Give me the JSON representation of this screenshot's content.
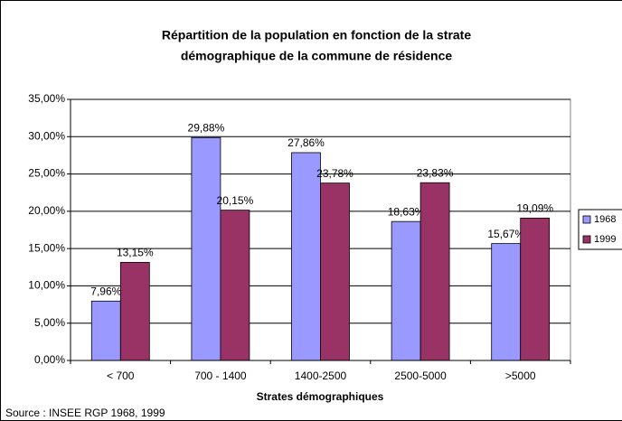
{
  "chart_data": {
    "type": "bar",
    "title": [
      "Répartition de la population en fonction de la strate",
      "démographique de la commune de résidence"
    ],
    "x_label": "Strates démographiques",
    "source": "Source : INSEE RGP 1968, 1999",
    "categories": [
      "< 700",
      "700 - 1400",
      "1400-2500",
      "2500-5000",
      ">5000"
    ],
    "series": [
      {
        "name": "1968",
        "color": "#9999ff",
        "values": [
          7.96,
          29.88,
          27.86,
          18.63,
          15.67
        ],
        "value_labels": [
          "7,96%",
          "29,88%",
          "27,86%",
          "18,63%",
          "15,67%"
        ]
      },
      {
        "name": "1999",
        "color": "#993366",
        "values": [
          13.15,
          20.15,
          23.78,
          23.83,
          19.09
        ],
        "value_labels": [
          "13,15%",
          "20,15%",
          "23,78%",
          "23,83%",
          "19,09%"
        ]
      }
    ],
    "ylim": [
      0,
      35
    ],
    "yticks": [
      {
        "value": 0,
        "label": "0,00%"
      },
      {
        "value": 5,
        "label": "5,00%"
      },
      {
        "value": 10,
        "label": "10,00%"
      },
      {
        "value": 15,
        "label": "15,00%"
      },
      {
        "value": 20,
        "label": "20,00%"
      },
      {
        "value": 25,
        "label": "25,00%"
      },
      {
        "value": 30,
        "label": "30,00%"
      },
      {
        "value": 35,
        "label": "35,00%"
      }
    ],
    "grid": true,
    "legend": "right"
  }
}
